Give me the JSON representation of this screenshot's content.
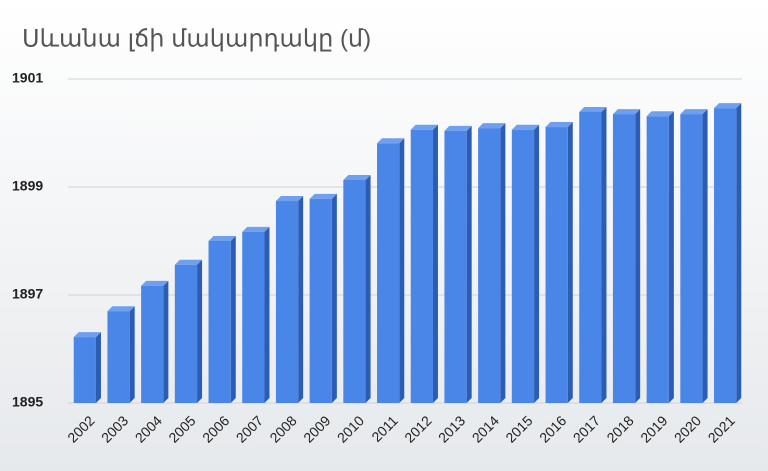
{
  "chart_data": {
    "type": "bar",
    "title": "Սևանա լճի մակարդակը (մ)",
    "categories": [
      "2002",
      "2003",
      "2004",
      "2005",
      "2006",
      "2007",
      "2008",
      "2009",
      "2010",
      "2011",
      "2012",
      "2013",
      "2014",
      "2015",
      "2016",
      "2017",
      "2018",
      "2019",
      "2020",
      "2021"
    ],
    "values": [
      1896.22,
      1896.7,
      1897.17,
      1897.56,
      1898.0,
      1898.17,
      1898.74,
      1898.78,
      1899.13,
      1899.81,
      1900.06,
      1900.04,
      1900.09,
      1900.06,
      1900.11,
      1900.39,
      1900.35,
      1900.31,
      1900.35,
      1900.46
    ],
    "color": "#4a86e8",
    "ylim": [
      1895,
      1901
    ],
    "yticks": [
      1895,
      1897,
      1899,
      1901
    ],
    "grid": true
  }
}
